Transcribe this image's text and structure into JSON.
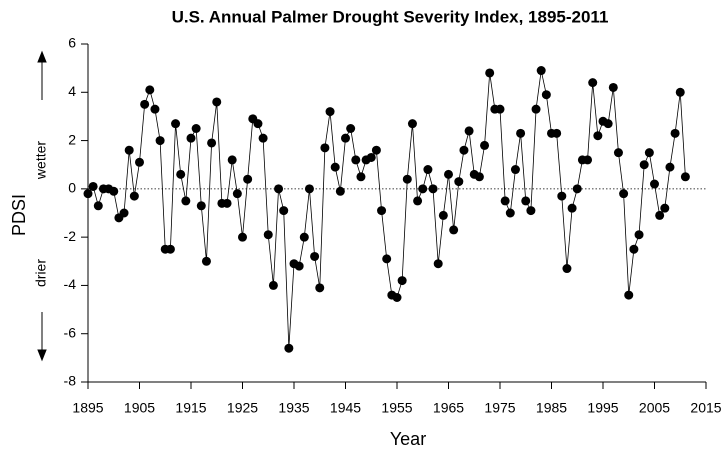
{
  "chart_data": {
    "type": "line",
    "title": "U.S. Annual Palmer Drought Severity Index, 1895-2011",
    "x_label": "Year",
    "y_label": "PDSI",
    "annotations": [
      "wetter",
      "drier"
    ],
    "x": [
      1895,
      1896,
      1897,
      1898,
      1899,
      1900,
      1901,
      1902,
      1903,
      1904,
      1905,
      1906,
      1907,
      1908,
      1909,
      1910,
      1911,
      1912,
      1913,
      1914,
      1915,
      1916,
      1917,
      1918,
      1919,
      1920,
      1921,
      1922,
      1923,
      1924,
      1925,
      1926,
      1927,
      1928,
      1929,
      1930,
      1931,
      1932,
      1933,
      1934,
      1935,
      1936,
      1937,
      1938,
      1939,
      1940,
      1941,
      1942,
      1943,
      1944,
      1945,
      1946,
      1947,
      1948,
      1949,
      1950,
      1951,
      1952,
      1953,
      1954,
      1955,
      1956,
      1957,
      1958,
      1959,
      1960,
      1961,
      1962,
      1963,
      1964,
      1965,
      1966,
      1967,
      1968,
      1969,
      1970,
      1971,
      1972,
      1973,
      1974,
      1975,
      1976,
      1977,
      1978,
      1979,
      1980,
      1981,
      1982,
      1983,
      1984,
      1985,
      1986,
      1987,
      1988,
      1989,
      1990,
      1991,
      1992,
      1993,
      1994,
      1995,
      1996,
      1997,
      1998,
      1999,
      2000,
      2001,
      2002,
      2003,
      2004,
      2005,
      2006,
      2007,
      2008,
      2009,
      2010,
      2011
    ],
    "series": [
      {
        "name": "PDSI",
        "color": "#000000",
        "values": [
          -0.2,
          0.1,
          -0.7,
          0.0,
          0.0,
          -0.1,
          -1.2,
          -1.0,
          1.6,
          -0.3,
          1.1,
          3.5,
          4.1,
          3.3,
          2.0,
          -2.5,
          -2.5,
          2.7,
          0.6,
          -0.5,
          2.1,
          2.5,
          -0.7,
          -3.0,
          1.9,
          3.6,
          -0.6,
          -0.6,
          1.2,
          -0.2,
          -2.0,
          0.4,
          2.9,
          2.7,
          2.1,
          -1.9,
          -4.0,
          0.0,
          -0.9,
          -6.6,
          -3.1,
          -3.2,
          -2.0,
          0.0,
          -2.8,
          -4.1,
          1.7,
          3.2,
          0.9,
          -0.1,
          2.1,
          2.5,
          1.2,
          0.5,
          1.2,
          1.3,
          1.6,
          -0.9,
          -2.9,
          -4.4,
          -4.5,
          -3.8,
          0.4,
          2.7,
          -0.5,
          0.0,
          0.8,
          0.0,
          -3.1,
          -1.1,
          0.6,
          -1.7,
          0.3,
          1.6,
          2.4,
          0.6,
          0.5,
          1.8,
          4.8,
          3.3,
          3.3,
          -0.5,
          -1.0,
          0.8,
          2.3,
          -0.5,
          -0.9,
          3.3,
          4.9,
          3.9,
          2.3,
          2.3,
          -0.3,
          -3.3,
          -0.8,
          0.0,
          1.2,
          1.2,
          4.4,
          2.2,
          2.8,
          2.7,
          4.2,
          1.5,
          -0.2,
          -4.4,
          -2.5,
          -1.9,
          1.0,
          1.5,
          0.2,
          -1.1,
          -0.8,
          0.9,
          2.3,
          4.0,
          0.5
        ]
      }
    ],
    "xlim": [
      1895,
      2015
    ],
    "xticks": [
      1895,
      1905,
      1915,
      1925,
      1935,
      1945,
      1955,
      1965,
      1975,
      1985,
      1995,
      2005,
      2015
    ],
    "ylim": [
      -8,
      6
    ],
    "yticks": [
      -8,
      -6,
      -4,
      -2,
      0,
      2,
      4,
      6
    ],
    "reference_line": 0,
    "grid": false
  }
}
